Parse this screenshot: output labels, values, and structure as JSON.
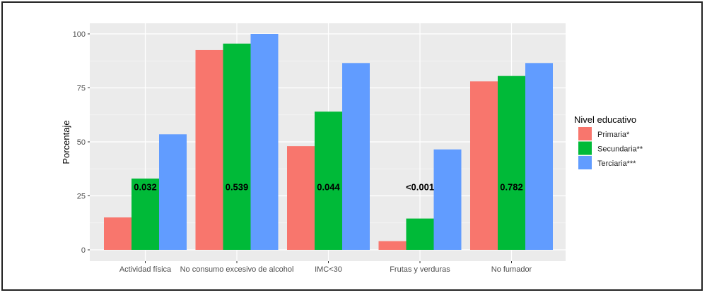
{
  "chart_data": {
    "type": "bar",
    "title": "",
    "xlabel": "",
    "ylabel": "Porcentaje",
    "ylim": [
      0,
      100
    ],
    "yticks": [
      0,
      25,
      50,
      75,
      100
    ],
    "grid": true,
    "legend_position": "right",
    "legend_title": "Nivel educativo",
    "categories": [
      "Actividad física",
      "No consumo excesivo de alcohol",
      "IMC<30",
      "Frutas y verduras",
      "No fumador"
    ],
    "series": [
      {
        "name": "Primaria*",
        "color": "#F8766D",
        "values": [
          15,
          92.5,
          48,
          4,
          78
        ]
      },
      {
        "name": "Secundaria**",
        "color": "#00BA38",
        "values": [
          33,
          95.5,
          64,
          14.5,
          80.5
        ]
      },
      {
        "name": "Terciaria***",
        "color": "#619CFF",
        "values": [
          53.5,
          100,
          86.5,
          46.5,
          86.5
        ]
      }
    ],
    "annotations": [
      "0.032",
      "0.539",
      "0.044",
      "<0.001",
      "0.782"
    ],
    "annotation_y": 29
  }
}
